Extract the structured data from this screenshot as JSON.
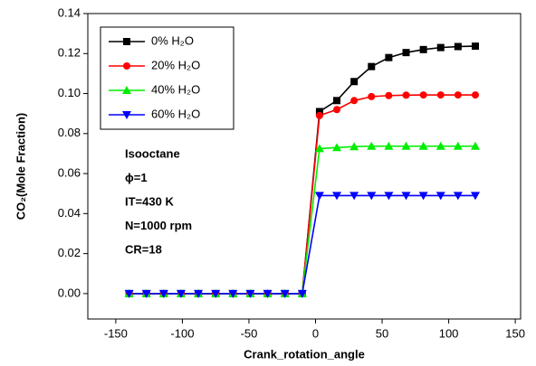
{
  "chart_data": {
    "type": "line",
    "x_label": "Crank_rotation_angle",
    "y_label": "CO₂(Mole Fraction)",
    "x": [
      -140,
      -127,
      -114,
      -101,
      -88,
      -75,
      -62,
      -49,
      -36,
      -23,
      -10,
      3,
      16,
      29,
      42,
      55,
      68,
      81,
      94,
      107,
      120
    ],
    "series": [
      {
        "name": "0% H₂O",
        "color": "#000000",
        "marker": "square",
        "values": [
          0,
          0,
          0,
          0,
          0,
          0,
          0,
          0,
          0,
          0,
          0,
          0.091,
          0.0965,
          0.106,
          0.1135,
          0.118,
          0.1205,
          0.122,
          0.123,
          0.1235,
          0.1237
        ]
      },
      {
        "name": "20% H₂O",
        "color": "#ff0000",
        "marker": "circle",
        "values": [
          0,
          0,
          0,
          0,
          0,
          0,
          0,
          0,
          0,
          0,
          0,
          0.089,
          0.092,
          0.0965,
          0.0985,
          0.099,
          0.0992,
          0.0993,
          0.0993,
          0.0993,
          0.0993
        ]
      },
      {
        "name": "40% H₂O",
        "color": "#00ee00",
        "marker": "triangle-up",
        "values": [
          0,
          0,
          0,
          0,
          0,
          0,
          0,
          0,
          0,
          0,
          0,
          0.0725,
          0.073,
          0.0735,
          0.0737,
          0.0737,
          0.0737,
          0.0737,
          0.0737,
          0.0737,
          0.0737
        ]
      },
      {
        "name": "60% H₂O",
        "color": "#0000ff",
        "marker": "triangle-down",
        "values": [
          0,
          0,
          0,
          0,
          0,
          0,
          0,
          0,
          0,
          0,
          0,
          0.049,
          0.049,
          0.049,
          0.049,
          0.049,
          0.049,
          0.049,
          0.049,
          0.049,
          0.049
        ]
      }
    ],
    "annotations": [
      "Isooctane",
      "ϕ=1",
      "IT=430 K",
      "N=1000 rpm",
      "CR=18"
    ],
    "xlim": [
      -171,
      154
    ],
    "xticks": [
      -150,
      -100,
      -50,
      0,
      50,
      100,
      150
    ],
    "ylim": [
      -0.0127,
      0.14
    ],
    "yticks": [
      {
        "value": 0,
        "label": "0.00"
      },
      {
        "value": 0.02,
        "label": "0.02"
      },
      {
        "value": 0.04,
        "label": "0.04"
      },
      {
        "value": 0.06,
        "label": "0.06"
      },
      {
        "value": 0.08,
        "label": "0.08"
      },
      {
        "value": 0.1,
        "label": "0.10"
      },
      {
        "value": 0.12,
        "label": "0.12"
      },
      {
        "value": 0.14,
        "label": "0.14"
      }
    ],
    "legend": "upper left",
    "grid": false
  }
}
